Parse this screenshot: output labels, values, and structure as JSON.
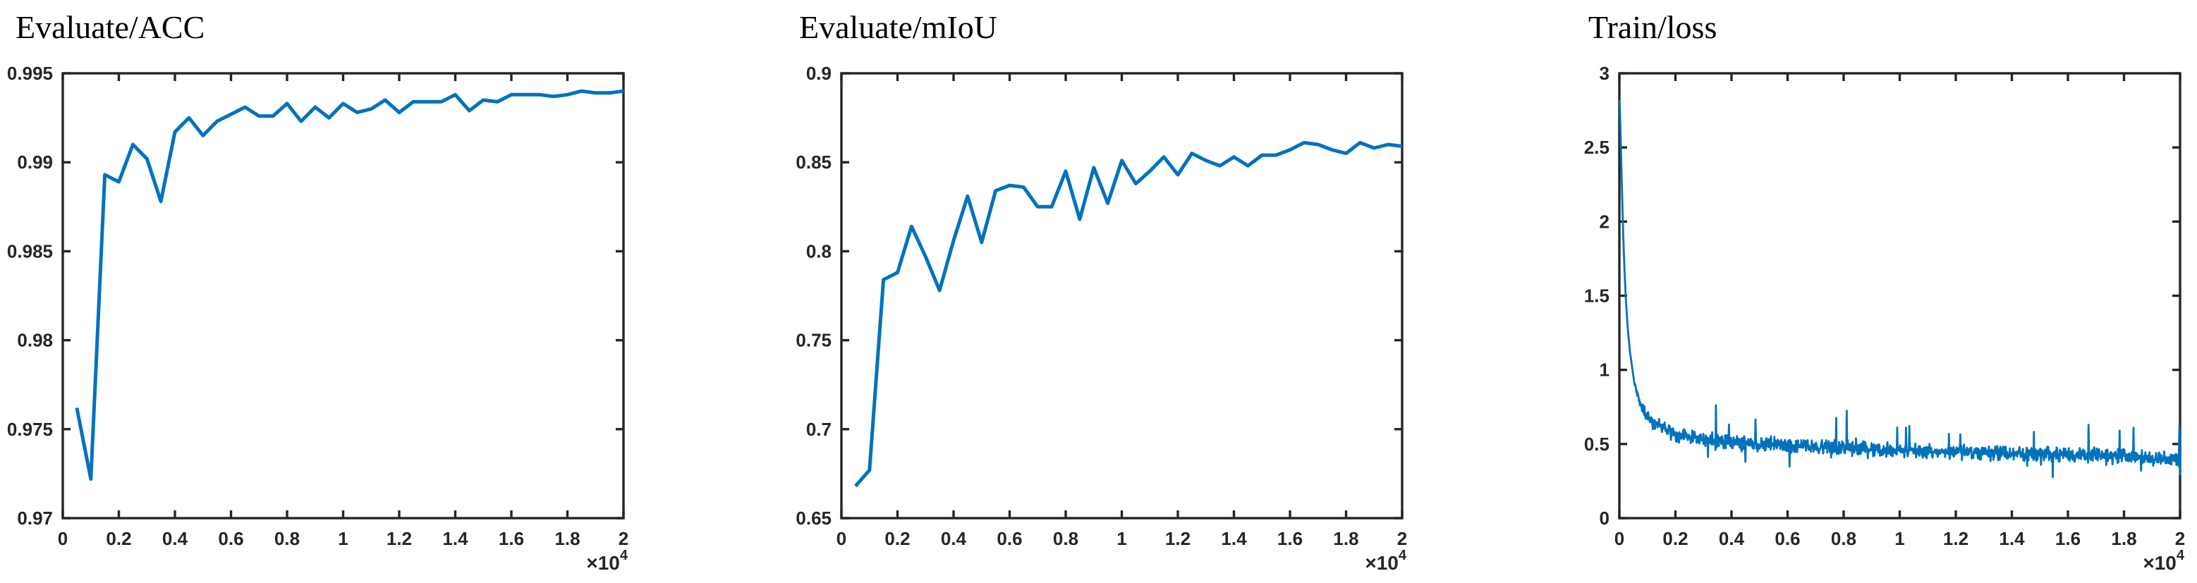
{
  "page": {
    "background": "#ffffff"
  },
  "colors": {
    "line": "#0072BD",
    "axis": "#262626",
    "tick_label": "#262626",
    "title": "#000000"
  },
  "chart_data": [
    {
      "type": "line",
      "title": "Evaluate/ACC",
      "xlabel": "",
      "ylabel": "",
      "xlim": [
        0,
        20000
      ],
      "ylim": [
        0.97,
        0.995
      ],
      "grid": false,
      "box": true,
      "legend": "none",
      "x_scale": {
        "base": "×10",
        "exp": "4"
      },
      "xticks": {
        "values": [
          0,
          2000,
          4000,
          6000,
          8000,
          10000,
          12000,
          14000,
          16000,
          18000,
          20000
        ],
        "labels": [
          "0",
          "0.2",
          "0.4",
          "0.6",
          "0.8",
          "1",
          "1.2",
          "1.4",
          "1.6",
          "1.8",
          "2"
        ]
      },
      "yticks": {
        "values": [
          0.97,
          0.975,
          0.98,
          0.985,
          0.99,
          0.995
        ],
        "labels": [
          "0.97",
          "0.975",
          "0.98",
          "0.985",
          "0.99",
          "0.995"
        ]
      },
      "x": [
        500,
        1000,
        1500,
        2000,
        2500,
        3000,
        3500,
        4000,
        4500,
        5000,
        5500,
        6000,
        6500,
        7000,
        7500,
        8000,
        8500,
        9000,
        9500,
        10000,
        10500,
        11000,
        11500,
        12000,
        12500,
        13000,
        13500,
        14000,
        14500,
        15000,
        15500,
        16000,
        16500,
        17000,
        17500,
        18000,
        18500,
        19000,
        19500,
        20000
      ],
      "y": [
        0.9762,
        0.9722,
        0.9893,
        0.9889,
        0.991,
        0.9902,
        0.9878,
        0.9917,
        0.9925,
        0.9915,
        0.9923,
        0.9927,
        0.9931,
        0.9926,
        0.9926,
        0.9933,
        0.9923,
        0.9931,
        0.9925,
        0.9933,
        0.9928,
        0.993,
        0.9935,
        0.9928,
        0.9934,
        0.9934,
        0.9934,
        0.9938,
        0.9929,
        0.9935,
        0.9934,
        0.9938,
        0.9938,
        0.9938,
        0.9937,
        0.9938,
        0.994,
        0.9939,
        0.9939,
        0.994
      ]
    },
    {
      "type": "line",
      "title": "Evaluate/mIoU",
      "xlabel": "",
      "ylabel": "",
      "xlim": [
        0,
        20000
      ],
      "ylim": [
        0.65,
        0.9
      ],
      "grid": false,
      "box": true,
      "legend": "none",
      "x_scale": {
        "base": "×10",
        "exp": "4"
      },
      "xticks": {
        "values": [
          0,
          2000,
          4000,
          6000,
          8000,
          10000,
          12000,
          14000,
          16000,
          18000,
          20000
        ],
        "labels": [
          "0",
          "0.2",
          "0.4",
          "0.6",
          "0.8",
          "1",
          "1.2",
          "1.4",
          "1.6",
          "1.8",
          "2"
        ]
      },
      "yticks": {
        "values": [
          0.65,
          0.7,
          0.75,
          0.8,
          0.85,
          0.9
        ],
        "labels": [
          "0.65",
          "0.7",
          "0.75",
          "0.8",
          "0.85",
          "0.9"
        ]
      },
      "x": [
        500,
        1000,
        1500,
        2000,
        2500,
        3000,
        3500,
        4000,
        4500,
        5000,
        5500,
        6000,
        6500,
        7000,
        7500,
        8000,
        8500,
        9000,
        9500,
        10000,
        10500,
        11000,
        11500,
        12000,
        12500,
        13000,
        13500,
        14000,
        14500,
        15000,
        15500,
        16000,
        16500,
        17000,
        17500,
        18000,
        18500,
        19000,
        19500,
        20000
      ],
      "y": [
        0.668,
        0.677,
        0.784,
        0.788,
        0.814,
        0.797,
        0.778,
        0.806,
        0.831,
        0.805,
        0.834,
        0.837,
        0.836,
        0.825,
        0.825,
        0.845,
        0.818,
        0.847,
        0.827,
        0.851,
        0.838,
        0.845,
        0.853,
        0.843,
        0.855,
        0.851,
        0.848,
        0.853,
        0.848,
        0.854,
        0.854,
        0.857,
        0.861,
        0.86,
        0.857,
        0.855,
        0.861,
        0.858,
        0.86,
        0.859
      ]
    },
    {
      "type": "line",
      "title": "Train/loss",
      "xlabel": "",
      "ylabel": "",
      "xlim": [
        0,
        20000
      ],
      "ylim": [
        0,
        3
      ],
      "grid": false,
      "box": true,
      "legend": "none",
      "x_scale": {
        "base": "×10",
        "exp": "4"
      },
      "xticks": {
        "values": [
          0,
          2000,
          4000,
          6000,
          8000,
          10000,
          12000,
          14000,
          16000,
          18000,
          20000
        ],
        "labels": [
          "0",
          "0.2",
          "0.4",
          "0.6",
          "0.8",
          "1",
          "1.2",
          "1.4",
          "1.6",
          "1.8",
          "2"
        ]
      },
      "yticks": {
        "values": [
          0,
          0.5,
          1,
          1.5,
          2,
          2.5,
          3
        ],
        "labels": [
          "0",
          "0.5",
          "1",
          "1.5",
          "2",
          "2.5",
          "3"
        ]
      },
      "loss_curve": {
        "trend": [
          [
            10,
            2.82
          ],
          [
            40,
            2.62
          ],
          [
            80,
            2.3
          ],
          [
            130,
            1.95
          ],
          [
            180,
            1.68
          ],
          [
            240,
            1.45
          ],
          [
            300,
            1.28
          ],
          [
            380,
            1.12
          ],
          [
            460,
            1.01
          ],
          [
            520,
            0.93
          ],
          [
            600,
            0.86
          ],
          [
            700,
            0.8
          ],
          [
            800,
            0.75
          ],
          [
            1000,
            0.68
          ],
          [
            1200,
            0.645
          ],
          [
            1500,
            0.615
          ],
          [
            2000,
            0.565
          ],
          [
            2500,
            0.545
          ],
          [
            3000,
            0.53
          ],
          [
            4000,
            0.515
          ],
          [
            5000,
            0.5
          ],
          [
            6000,
            0.492
          ],
          [
            7000,
            0.484
          ],
          [
            8000,
            0.476
          ],
          [
            9000,
            0.466
          ],
          [
            10000,
            0.458
          ],
          [
            11000,
            0.452
          ],
          [
            12000,
            0.446
          ],
          [
            13000,
            0.44
          ],
          [
            14000,
            0.436
          ],
          [
            15000,
            0.432
          ],
          [
            16000,
            0.428
          ],
          [
            17000,
            0.422
          ],
          [
            18000,
            0.416
          ],
          [
            19000,
            0.408
          ],
          [
            20000,
            0.4
          ]
        ],
        "noise": {
          "seed": 42,
          "start": 520,
          "end": 19920,
          "step": 15,
          "amplitude": 0.058,
          "spike_probability": 0.016,
          "spike_min": 0.08,
          "spike_max": 0.24,
          "dip_probability": 0.016,
          "dip_min": 0.05,
          "dip_max": 0.13,
          "ramp_start": 400,
          "ramp_length": 600,
          "clamp": [
            0.22,
            2.92
          ]
        },
        "end_points": [
          [
            19950,
            0.35
          ],
          [
            19975,
            0.62
          ],
          [
            20000,
            0.29
          ]
        ]
      }
    }
  ]
}
